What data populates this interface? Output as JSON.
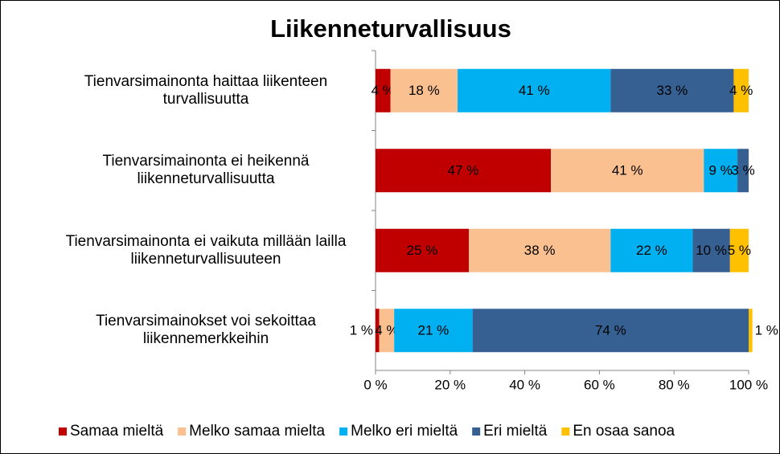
{
  "chart_data": {
    "type": "bar",
    "orientation": "horizontal",
    "stacked": true,
    "title": "Liikenneturvallisuus",
    "categories": [
      "Tienvarsimainonta haittaa liikenteen turvallisuutta",
      "Tienvarsimainonta ei heikennä liikenneturvallisuutta",
      "Tienvarsimainonta ei vaikuta millään lailla liikenneturvallisuuteen",
      "Tienvarsimainokset voi sekoittaa liikennemerkkeihin"
    ],
    "series": [
      {
        "name": "Samaa mieltä",
        "color": "#c00000",
        "values": [
          4,
          47,
          25,
          1
        ],
        "value_labels": [
          "4 %",
          "47 %",
          "25 %",
          "1 %"
        ]
      },
      {
        "name": "Melko samaa mielta",
        "color": "#fac090",
        "values": [
          18,
          41,
          38,
          4
        ],
        "value_labels": [
          "18 %",
          "41 %",
          "38 %",
          "4 %"
        ]
      },
      {
        "name": "Melko eri mieltä",
        "color": "#00b0f0",
        "values": [
          41,
          9,
          22,
          21
        ],
        "value_labels": [
          "41 %",
          "9 %",
          "22 %",
          "21 %"
        ]
      },
      {
        "name": "Eri mieltä",
        "color": "#376092",
        "values": [
          33,
          3,
          10,
          74
        ],
        "value_labels": [
          "33 %",
          "3 %",
          "10 %",
          "74 %"
        ]
      },
      {
        "name": "En osaa sanoa",
        "color": "#ffc000",
        "values": [
          4,
          0,
          5,
          1
        ],
        "value_labels": [
          "4 %",
          null,
          "5 %",
          "1 %"
        ]
      }
    ],
    "xlim": [
      0,
      100
    ],
    "xticks": [
      {
        "value": 0,
        "label": "0 %"
      },
      {
        "value": 20,
        "label": "20 %"
      },
      {
        "value": 40,
        "label": "40 %"
      },
      {
        "value": 60,
        "label": "60 %"
      },
      {
        "value": 80,
        "label": "80 %"
      },
      {
        "value": 100,
        "label": "100 %"
      }
    ],
    "legend": "bottom"
  }
}
